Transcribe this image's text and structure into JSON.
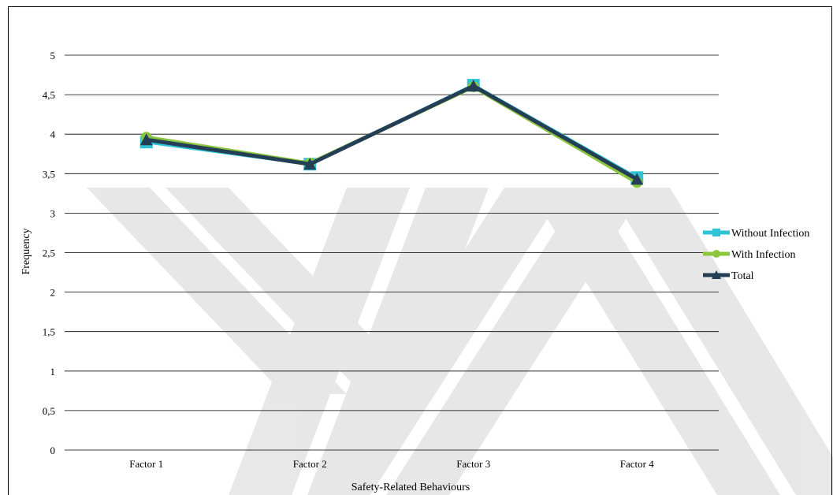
{
  "chart_data": {
    "type": "line",
    "title": "",
    "xlabel": "Safety-Related Behaviours",
    "ylabel": "Frequency",
    "categories": [
      "Factor 1",
      "Factor 2",
      "Factor 3",
      "Factor 4"
    ],
    "ylim": [
      0,
      5
    ],
    "yticks": [
      "0",
      "0,5",
      "1",
      "1,5",
      "2",
      "2,5",
      "3",
      "3,5",
      "4",
      "4,5",
      "5"
    ],
    "grid": true,
    "legend_position": "right",
    "series": [
      {
        "name": "Without Infection",
        "values": [
          3.9,
          3.62,
          4.62,
          3.45
        ],
        "color": "#2ec4d6",
        "marker": "square"
      },
      {
        "name": "With Infection",
        "values": [
          3.96,
          3.63,
          4.6,
          3.39
        ],
        "color": "#8cc63f",
        "marker": "circle"
      },
      {
        "name": "Total",
        "values": [
          3.93,
          3.62,
          4.61,
          3.43
        ],
        "color": "#243f55",
        "marker": "triangle"
      }
    ]
  },
  "watermark": {
    "text": "YÖK"
  }
}
